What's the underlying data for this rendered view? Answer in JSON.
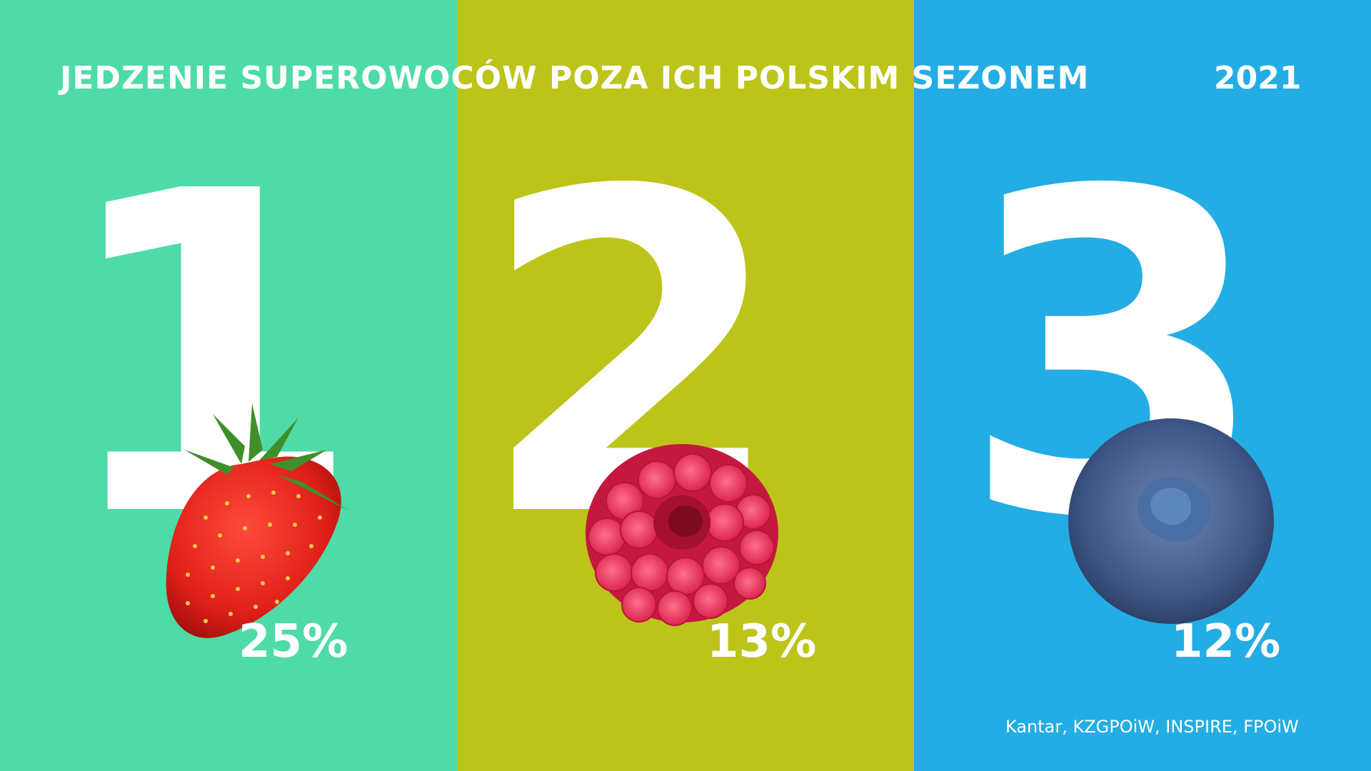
{
  "title": "JEDZENIE SUPEROWOCÓW POZA ICH POLSKIM SEZONEM",
  "year": "2021",
  "source": "Kantar, KZGPOiW, INSPIRE, FPOiW",
  "colors": {
    "panel1": "#4FDBA7",
    "panel2": "#BCC41A",
    "panel3": "#23ADE4",
    "text": "#FFFFFF"
  },
  "chart_data": {
    "type": "bar",
    "categories": [
      "1",
      "2",
      "3"
    ],
    "values": [
      25,
      13,
      12
    ],
    "value_labels": [
      "25%",
      "13%",
      "12%"
    ],
    "fruit_icons": [
      "strawberry-icon",
      "raspberry-icon",
      "blueberry-icon"
    ],
    "title": "JEDZENIE SUPEROWOCÓW POZA ICH POLSKIM SEZONEM"
  }
}
